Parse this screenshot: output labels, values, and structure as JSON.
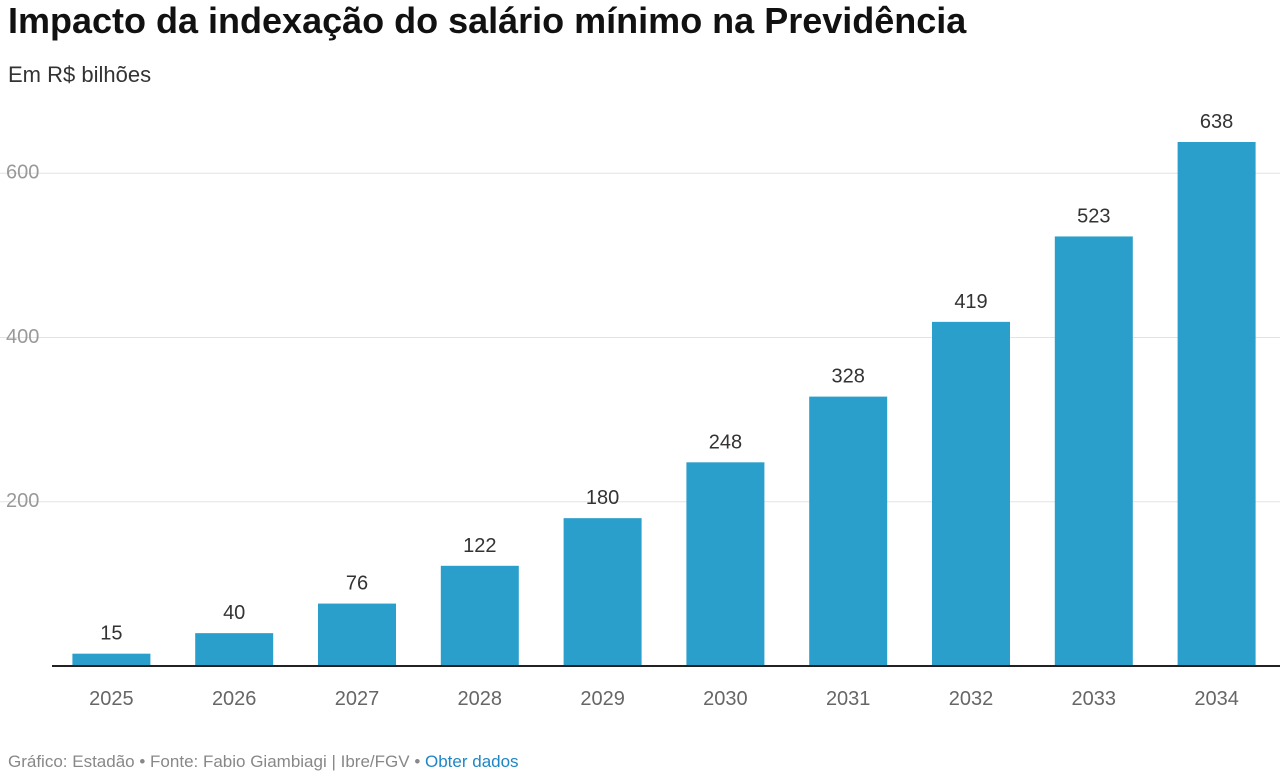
{
  "title": "Impacto da indexação do salário mínimo na Previdência",
  "subtitle": "Em R$ bilhões",
  "footer": {
    "credit": "Gráfico: Estadão",
    "separator": "•",
    "source": "Fonte: Fabio Giambiagi | Ibre/FGV",
    "link_label": "Obter dados"
  },
  "colors": {
    "bar": "#2b9fcb",
    "grid": "#e3e3e3",
    "axis": "#222222",
    "link": "#1f86c4"
  },
  "chart_data": {
    "type": "bar",
    "title": "Impacto da indexação do salário mínimo na Previdência",
    "subtitle": "Em R$ bilhões",
    "xlabel": "",
    "ylabel": "",
    "categories": [
      "2025",
      "2026",
      "2027",
      "2028",
      "2029",
      "2030",
      "2031",
      "2032",
      "2033",
      "2034"
    ],
    "values": [
      15,
      40,
      76,
      122,
      180,
      248,
      328,
      419,
      523,
      638
    ],
    "data_labels": [
      "15",
      "40",
      "76",
      "122",
      "180",
      "248",
      "328",
      "419",
      "523",
      "638"
    ],
    "yticks": [
      200,
      400,
      600
    ],
    "ytick_labels": [
      "200",
      "400",
      "600"
    ],
    "ylim": [
      0,
      638
    ],
    "grid": true,
    "legend": "none"
  }
}
